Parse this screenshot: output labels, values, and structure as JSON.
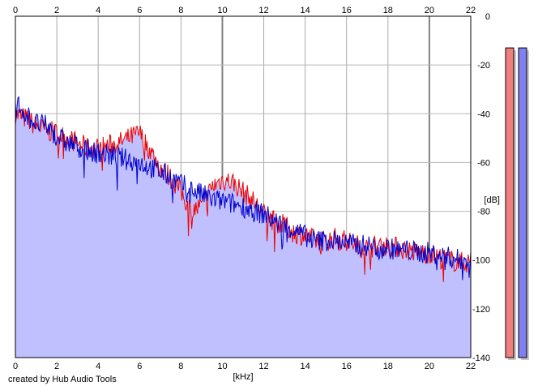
{
  "chart_data": {
    "type": "area",
    "xlabel": "[kHz]",
    "ylabel": "[dB]",
    "xlim": [
      0,
      22
    ],
    "ylim": [
      -140,
      0
    ],
    "x_ticks": [
      0,
      2,
      4,
      6,
      8,
      10,
      12,
      14,
      16,
      18,
      20,
      22
    ],
    "y_ticks": [
      0,
      -20,
      -40,
      -60,
      -80,
      -100,
      -120,
      -140
    ],
    "grid": true,
    "series": [
      {
        "color": "#ee0000",
        "x": [
          0,
          0.5,
          1,
          1.5,
          2,
          2.5,
          3,
          3.5,
          4,
          4.5,
          5,
          5.5,
          6,
          6.5,
          7,
          7.5,
          8,
          8.5,
          9,
          9.5,
          10,
          10.5,
          11,
          11.5,
          12,
          12.5,
          13,
          13.5,
          14,
          14.5,
          15,
          15.5,
          16,
          16.5,
          17,
          17.5,
          18,
          18.5,
          19,
          19.5,
          20,
          20.5,
          21,
          21.5,
          22
        ],
        "values": [
          -40,
          -42,
          -45,
          -47,
          -48,
          -50,
          -52,
          -54,
          -54,
          -53,
          -52,
          -50,
          -48,
          -55,
          -62,
          -66,
          -72,
          -80,
          -78,
          -70,
          -67,
          -68,
          -72,
          -76,
          -81,
          -84,
          -86,
          -89,
          -90,
          -92,
          -92,
          -91,
          -92,
          -94,
          -95,
          -94,
          -94,
          -95,
          -96,
          -97,
          -97,
          -99,
          -100,
          -101,
          -101
        ]
      },
      {
        "color": "#0000cc",
        "x": [
          0,
          0.5,
          1,
          1.5,
          2,
          2.5,
          3,
          3.5,
          4,
          4.5,
          5,
          5.5,
          6,
          6.5,
          7,
          7.5,
          8,
          8.5,
          9,
          9.5,
          10,
          10.5,
          11,
          11.5,
          12,
          12.5,
          13,
          13.5,
          14,
          14.5,
          15,
          15.5,
          16,
          16.5,
          17,
          17.5,
          18,
          18.5,
          19,
          19.5,
          20,
          20.5,
          21,
          21.5,
          22
        ],
        "values": [
          -35,
          -40,
          -44,
          -45,
          -49,
          -52,
          -53,
          -55,
          -56,
          -57,
          -58,
          -59,
          -60,
          -62,
          -64,
          -66,
          -69,
          -71,
          -73,
          -75,
          -76,
          -77,
          -78,
          -80,
          -81,
          -84,
          -86,
          -88,
          -90,
          -92,
          -92,
          -92,
          -93,
          -94,
          -94,
          -95,
          -95,
          -96,
          -96,
          -97,
          -97,
          -98,
          -99,
          -100,
          -100
        ]
      }
    ],
    "fill_color": "#c0c0ff",
    "fill_floor": -140
  },
  "level_meters": [
    {
      "color": "#f08080",
      "top_db": -13,
      "range": [
        -140,
        0
      ]
    },
    {
      "color": "#8080f0",
      "top_db": -13,
      "range": [
        -140,
        0
      ]
    }
  ],
  "credit": "created by Hub Audio Tools"
}
